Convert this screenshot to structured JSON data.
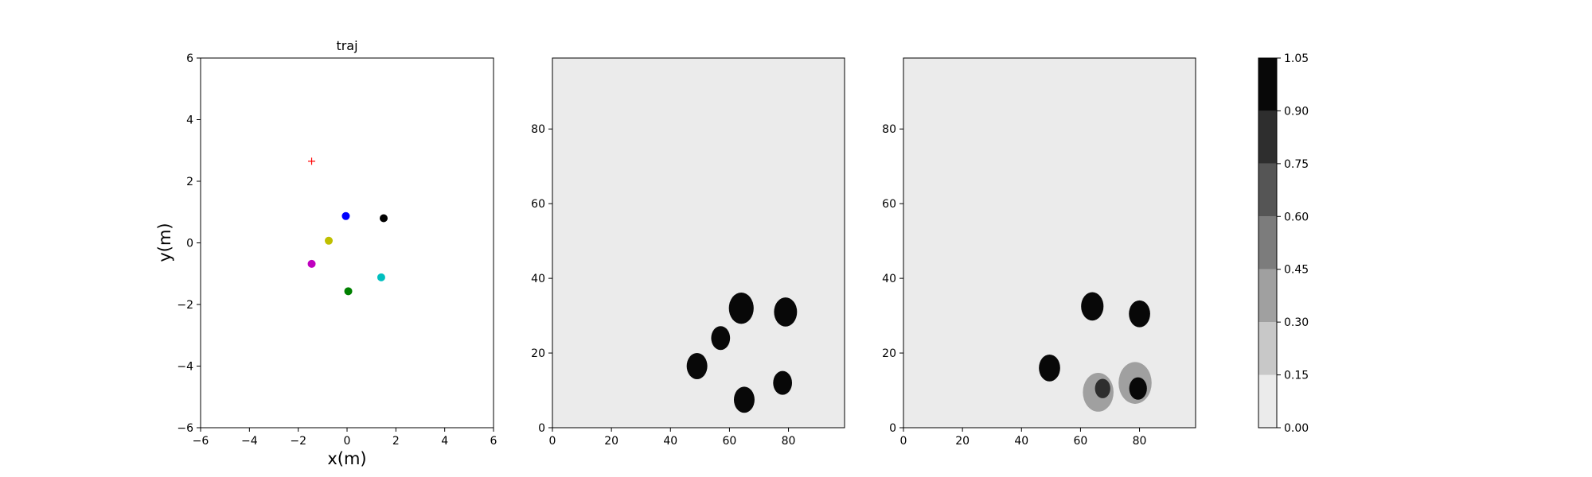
{
  "chart_data": [
    {
      "type": "scatter",
      "title": "traj",
      "xlabel": "x(m)",
      "ylabel": "y(m)",
      "xlim": [
        -6,
        6
      ],
      "ylim": [
        -6,
        6
      ],
      "xticks": [
        -6,
        -4,
        -2,
        0,
        2,
        4,
        6
      ],
      "yticks": [
        -6,
        -4,
        -2,
        0,
        2,
        4,
        6
      ],
      "grid": false,
      "goal": {
        "x": -1.45,
        "y": 2.65,
        "marker": "+",
        "color": "#ff0000"
      },
      "points": [
        {
          "x": -0.05,
          "y": 0.87,
          "color": "#0000ff"
        },
        {
          "x": 1.5,
          "y": 0.8,
          "color": "#000000"
        },
        {
          "x": -0.75,
          "y": 0.07,
          "color": "#bfbf00"
        },
        {
          "x": -1.45,
          "y": -0.68,
          "color": "#bf00bf"
        },
        {
          "x": 1.4,
          "y": -1.12,
          "color": "#00bfbf"
        },
        {
          "x": 0.05,
          "y": -1.57,
          "color": "#008000"
        }
      ]
    },
    {
      "type": "heatmap",
      "title": "",
      "xlim": [
        0,
        99
      ],
      "ylim": [
        0,
        99
      ],
      "xticks": [
        0,
        20,
        40,
        60,
        80
      ],
      "yticks": [
        0,
        20,
        40,
        60,
        80
      ],
      "background_level": 0.0,
      "blobs": [
        {
          "cx": 64,
          "cy": 32,
          "r": 4.2,
          "level": 1.0
        },
        {
          "cx": 79,
          "cy": 31,
          "r": 3.9,
          "level": 1.0
        },
        {
          "cx": 57,
          "cy": 24,
          "r": 3.2,
          "level": 1.0
        },
        {
          "cx": 49,
          "cy": 16.5,
          "r": 3.5,
          "level": 1.0
        },
        {
          "cx": 78,
          "cy": 12,
          "r": 3.2,
          "level": 1.0
        },
        {
          "cx": 65,
          "cy": 7.5,
          "r": 3.5,
          "level": 1.0
        }
      ]
    },
    {
      "type": "heatmap",
      "title": "",
      "xlim": [
        0,
        99
      ],
      "ylim": [
        0,
        99
      ],
      "xticks": [
        0,
        20,
        40,
        60,
        80
      ],
      "yticks": [
        0,
        20,
        40,
        60,
        80
      ],
      "background_level": 0.0,
      "blobs": [
        {
          "cx": 64,
          "cy": 32.5,
          "r": 3.8,
          "level": 1.0
        },
        {
          "cx": 80,
          "cy": 30.5,
          "r": 3.6,
          "level": 1.0
        },
        {
          "cx": 49.5,
          "cy": 16,
          "r": 3.6,
          "level": 1.0
        },
        {
          "cx": 66,
          "cy": 9.5,
          "r": 5.2,
          "level": 0.3
        },
        {
          "cx": 67.5,
          "cy": 10.5,
          "r": 2.6,
          "level": 0.75
        },
        {
          "cx": 78.5,
          "cy": 12,
          "r": 5.6,
          "level": 0.3
        },
        {
          "cx": 79.5,
          "cy": 10.5,
          "r": 3.0,
          "level": 1.0
        }
      ]
    },
    {
      "type": "colorbar",
      "levels": [
        0.0,
        0.15,
        0.3,
        0.45,
        0.6,
        0.75,
        0.9,
        1.05
      ],
      "tick_labels": [
        "0.00",
        "0.15",
        "0.30",
        "0.45",
        "0.60",
        "0.75",
        "0.90",
        "1.05"
      ],
      "colors": [
        "#ebebeb",
        "#c8c8c8",
        "#a0a0a0",
        "#7c7c7c",
        "#555555",
        "#2e2e2e",
        "#080808"
      ]
    }
  ]
}
